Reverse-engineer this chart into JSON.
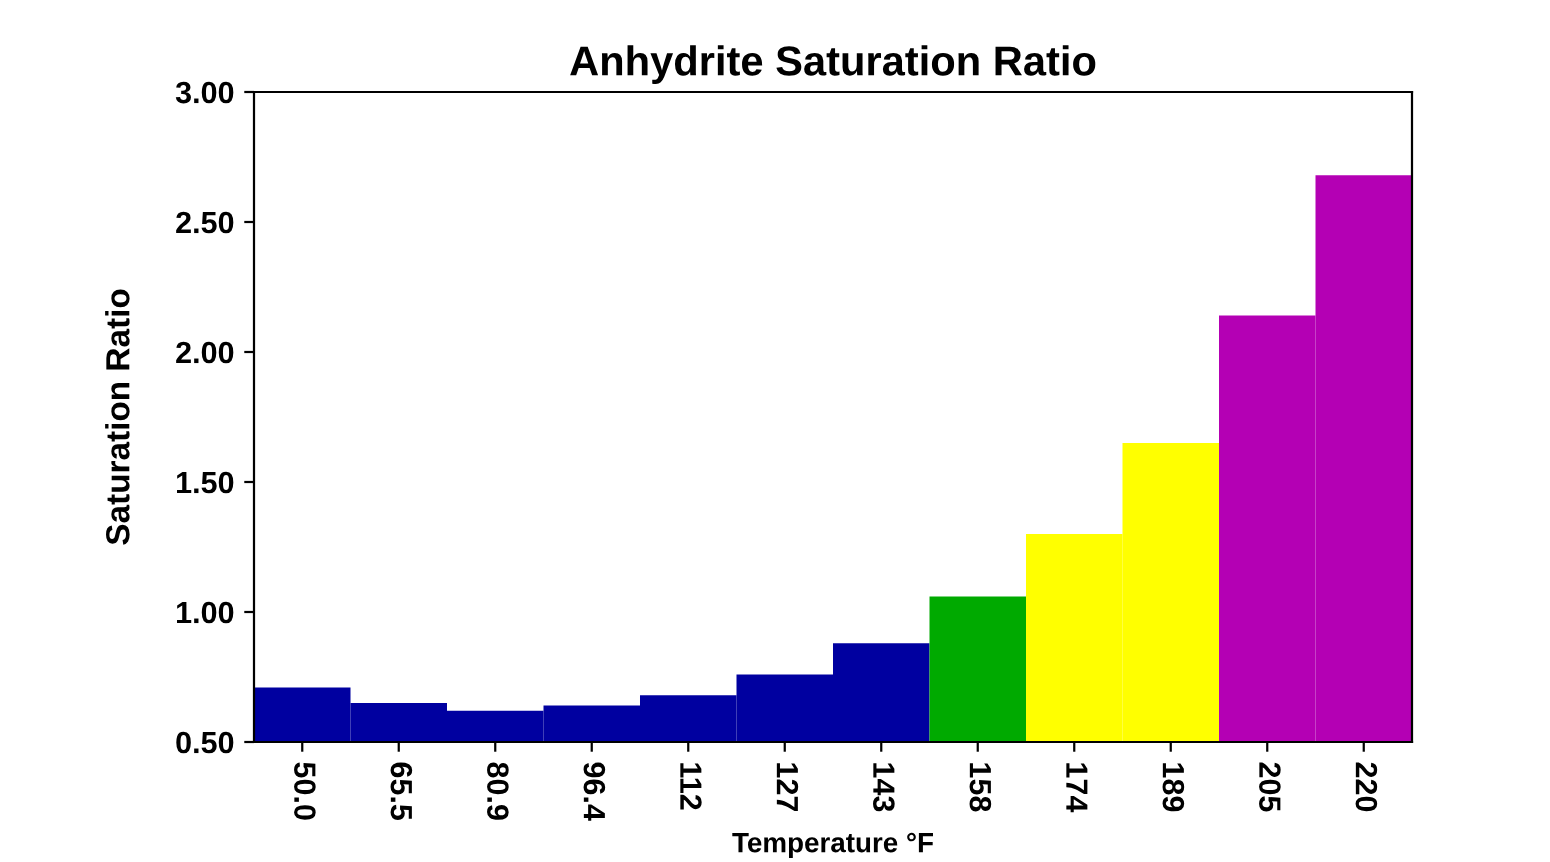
{
  "chart_data": {
    "type": "bar",
    "title": "Anhydrite Saturation Ratio",
    "xlabel": "Temperature °F",
    "ylabel": "Saturation Ratio",
    "categories": [
      "50.0",
      "65.5",
      "80.9",
      "96.4",
      "112",
      "127",
      "143",
      "158",
      "174",
      "189",
      "205",
      "220"
    ],
    "values": [
      0.71,
      0.65,
      0.62,
      0.64,
      0.68,
      0.76,
      0.88,
      1.06,
      1.3,
      1.65,
      2.14,
      2.68
    ],
    "colors": [
      "#0000a0",
      "#0000a0",
      "#0000a0",
      "#0000a0",
      "#0000a0",
      "#0000a0",
      "#0000a0",
      "#00aa00",
      "#ffff00",
      "#ffff00",
      "#b400b4",
      "#b400b4"
    ],
    "ylim": [
      0.5,
      3.0
    ],
    "yticks": [
      {
        "value": 0.5,
        "label": "0.50"
      },
      {
        "value": 1.0,
        "label": "1.00"
      },
      {
        "value": 1.5,
        "label": "1.50"
      },
      {
        "value": 2.0,
        "label": "2.00"
      },
      {
        "value": 2.5,
        "label": "2.50"
      },
      {
        "value": 3.0,
        "label": "3.00"
      }
    ],
    "grid": false,
    "legend": false
  }
}
